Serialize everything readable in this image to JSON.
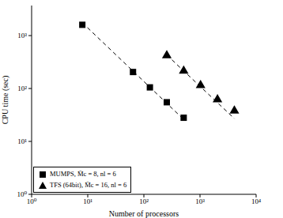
{
  "chart_data": {
    "type": "scatter",
    "x_label": "Number of processors",
    "y_label": "CPU time (sec)",
    "log": true,
    "legend": "lower left",
    "xlim": [
      1,
      10000
    ],
    "ylim": [
      1,
      3700
    ],
    "xticks": [
      {
        "value": 1,
        "label": "10⁰"
      },
      {
        "value": 10,
        "label": "10¹"
      },
      {
        "value": 100,
        "label": "10²"
      },
      {
        "value": 1000,
        "label": "10³"
      },
      {
        "value": 10000,
        "label": "10⁴"
      }
    ],
    "yticks": [
      {
        "value": 1,
        "label": "10⁰"
      },
      {
        "value": 10,
        "label": "10¹"
      },
      {
        "value": 100,
        "label": "10²"
      },
      {
        "value": 1000,
        "label": "10³"
      }
    ],
    "series": [
      {
        "name": "MUMPS, M̄c = 8, nl = 6",
        "color": "#000000",
        "marker": "square",
        "x": [
          8,
          64,
          128,
          256,
          512
        ],
        "values": [
          1600,
          205,
          105,
          55,
          28
        ]
      },
      {
        "name": "TFS (64bit), M̄c = 16, nl = 6",
        "color": "#000000",
        "marker": "triangle",
        "x": [
          256,
          512,
          1024,
          2048,
          4096
        ],
        "values": [
          420,
          215,
          115,
          62,
          38
        ]
      },
      {
        "type": "line",
        "line_style": "dashed",
        "color": "#000000",
        "x": [
          8,
          512
        ],
        "values": [
          1750,
          26
        ]
      },
      {
        "type": "line",
        "line_style": "dashed",
        "color": "#000000",
        "x": [
          256,
          4096
        ],
        "values": [
          430,
          27
        ]
      }
    ]
  }
}
